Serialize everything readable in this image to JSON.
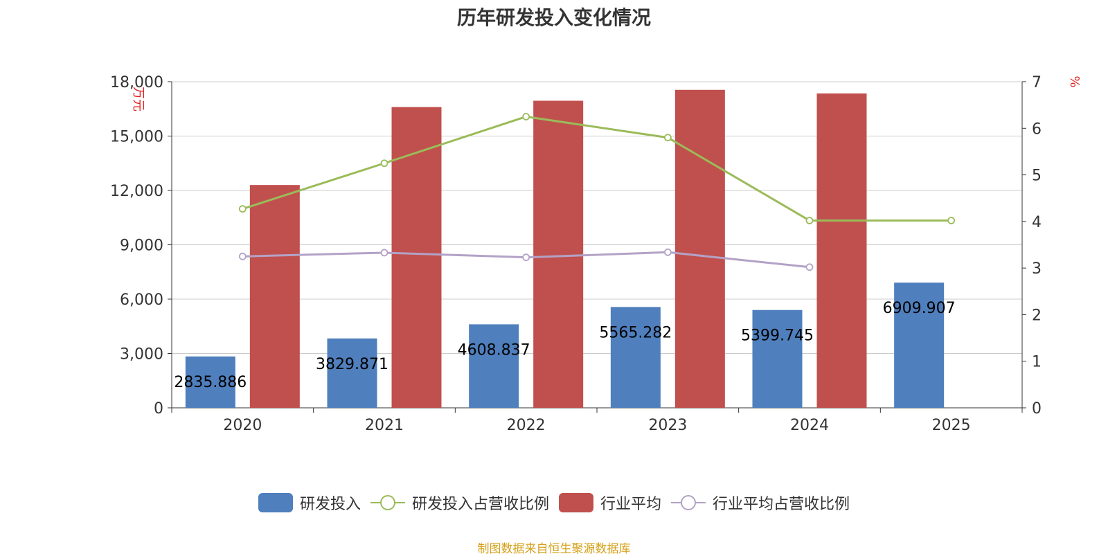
{
  "title": "历年研发投入变化情况",
  "source": "制图数据来自恒生聚源数据库",
  "chart_data": {
    "type": "bar",
    "categories": [
      "2020",
      "2021",
      "2022",
      "2023",
      "2024",
      "2025"
    ],
    "y_left": {
      "label": "万元",
      "min": 0,
      "max": 18000,
      "ticks": [
        0,
        3000,
        6000,
        9000,
        12000,
        15000,
        18000
      ],
      "tick_labels": [
        "0",
        "3,000",
        "6,000",
        "9,000",
        "12,000",
        "15,000",
        "18,000"
      ]
    },
    "y_right": {
      "label": "%",
      "min": 0,
      "max": 7,
      "ticks": [
        0,
        1,
        2,
        3,
        4,
        5,
        6,
        7
      ]
    },
    "grid": true,
    "legend_position": "bottom",
    "series": [
      {
        "name": "研发投入",
        "kind": "bar",
        "axis": "left",
        "color": "#4f7fbd",
        "values": [
          2835.886,
          3829.871,
          4608.837,
          5565.282,
          5399.745,
          6909.907
        ],
        "labels": [
          "2835.886",
          "3829.871",
          "4608.837",
          "5565.282",
          "5399.745",
          "6909.907"
        ]
      },
      {
        "name": "研发投入占营收比例",
        "kind": "line",
        "axis": "right",
        "color": "#9bbb59",
        "values": [
          4.27,
          5.25,
          6.25,
          5.8,
          4.02,
          4.02
        ]
      },
      {
        "name": "行业平均",
        "kind": "bar",
        "axis": "left",
        "color": "#c0504d",
        "values": [
          12300,
          16600,
          16950,
          17550,
          17350,
          null
        ]
      },
      {
        "name": "行业平均占营收比例",
        "kind": "line",
        "axis": "right",
        "color": "#b3a2c7",
        "values": [
          3.25,
          3.33,
          3.23,
          3.34,
          3.02,
          null
        ]
      }
    ]
  }
}
